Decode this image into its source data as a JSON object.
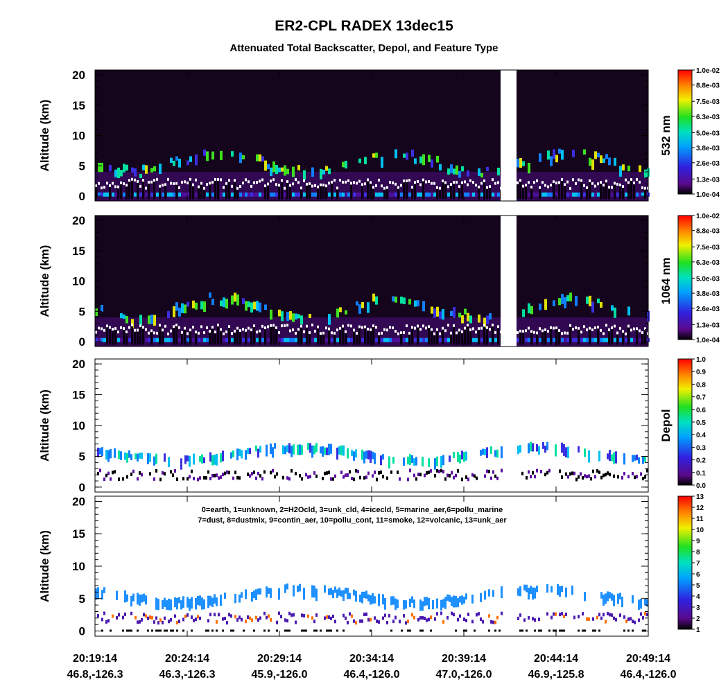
{
  "figure": {
    "title": "ER2-CPL RADEX 13dec15",
    "subtitle": "Attenuated Total Backscatter, Depol, and Feature Type",
    "x_ticks": [
      {
        "time": "20:19:14",
        "position": "46.8,-126.3"
      },
      {
        "time": "20:24:14",
        "position": "46.3,-126.3"
      },
      {
        "time": "20:29:14",
        "position": "45.9,-126.0"
      },
      {
        "time": "20:34:14",
        "position": "46.4,-126.0"
      },
      {
        "time": "20:39:14",
        "position": "47.0,-126.0"
      },
      {
        "time": "20:44:14",
        "position": "46.9,-125.8"
      },
      {
        "time": "20:49:14",
        "position": "46.4,-126.0"
      }
    ]
  },
  "chart_data": [
    {
      "type": "heatmap",
      "ylabel": "Altitude (km)",
      "ylim": [
        -0.8,
        20.8
      ],
      "yticks": [
        0,
        5,
        10,
        15,
        20
      ],
      "colorbar_label": "532 nm",
      "colorbar_ticks": [
        {
          "value": 0.0001,
          "label": "1.0e-04"
        },
        {
          "value": 0.0013,
          "label": "1.3e-03"
        },
        {
          "value": 0.0026,
          "label": "2.6e-03"
        },
        {
          "value": 0.0038,
          "label": "3.8e-03"
        },
        {
          "value": 0.005,
          "label": "5.0e-03"
        },
        {
          "value": 0.0063,
          "label": "6.3e-03"
        },
        {
          "value": 0.0075,
          "label": "7.5e-03"
        },
        {
          "value": 0.0088,
          "label": "8.8e-03"
        },
        {
          "value": 0.01,
          "label": "1.0e-02"
        }
      ]
    },
    {
      "type": "heatmap",
      "ylabel": "Altitude (km)",
      "ylim": [
        -0.8,
        20.8
      ],
      "yticks": [
        0,
        5,
        10,
        15,
        20
      ],
      "colorbar_label": "1064 nm",
      "colorbar_ticks": [
        {
          "value": 0.0001,
          "label": "1.0e-04"
        },
        {
          "value": 0.0013,
          "label": "1.3e-03"
        },
        {
          "value": 0.0026,
          "label": "2.6e-03"
        },
        {
          "value": 0.0038,
          "label": "3.8e-03"
        },
        {
          "value": 0.005,
          "label": "5.0e-03"
        },
        {
          "value": 0.0063,
          "label": "6.3e-03"
        },
        {
          "value": 0.0075,
          "label": "7.5e-03"
        },
        {
          "value": 0.0088,
          "label": "8.8e-03"
        },
        {
          "value": 0.01,
          "label": "1.0e-02"
        }
      ]
    },
    {
      "type": "heatmap",
      "ylabel": "Altitude (km)",
      "ylim": [
        -0.8,
        20.8
      ],
      "yticks": [
        0,
        5,
        10,
        15,
        20
      ],
      "colorbar_label": "Depol",
      "colorbar_ticks": [
        {
          "value": 0,
          "label": "0.0"
        },
        {
          "value": 0.1,
          "label": "0.1"
        },
        {
          "value": 0.2,
          "label": "0.2"
        },
        {
          "value": 0.3,
          "label": "0.3"
        },
        {
          "value": 0.4,
          "label": "0.4"
        },
        {
          "value": 0.5,
          "label": "0.5"
        },
        {
          "value": 0.6,
          "label": "0.6"
        },
        {
          "value": 0.7,
          "label": "0.7"
        },
        {
          "value": 0.8,
          "label": "0.8"
        },
        {
          "value": 0.9,
          "label": "0.9"
        },
        {
          "value": 1,
          "label": "1.0"
        }
      ]
    },
    {
      "type": "heatmap",
      "ylabel": "Altitude (km)",
      "ylim": [
        -0.8,
        20.8
      ],
      "yticks": [
        0,
        5,
        10,
        15,
        20
      ],
      "legend_lines": [
        "0=earth, 1=unknown, 2=H2Ocld, 3=unk_cld, 4=icecld, 5=marine_aer,6=pollu_marine",
        "7=dust, 8=dustmix, 9=contin_aer, 10=pollu_cont, 11=smoke, 12=volcanic, 13=unk_aer"
      ],
      "colorbar_ticks": [
        1,
        2,
        3,
        4,
        5,
        6,
        7,
        8,
        9,
        10,
        11,
        12,
        13
      ]
    }
  ]
}
